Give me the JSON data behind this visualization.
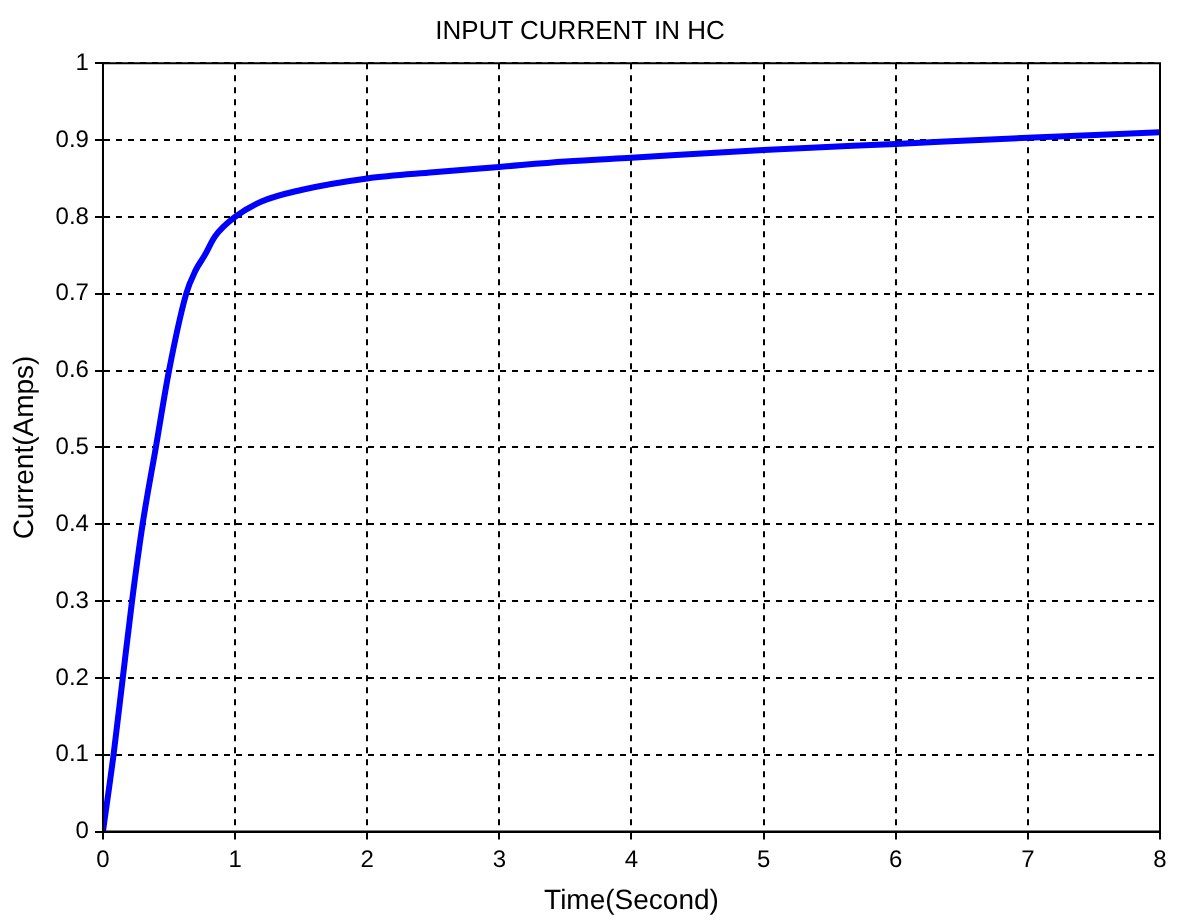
{
  "chart_data": {
    "type": "line",
    "title": "INPUT CURRENT IN HC",
    "xlabel": "Time(Second)",
    "ylabel": "Current(Amps)",
    "x": [
      0,
      0.08,
      0.15,
      0.22,
      0.3,
      0.4,
      0.5,
      0.63,
      0.7,
      0.77,
      0.85,
      1,
      1.2,
      1.5,
      2,
      2.5,
      3,
      3.5,
      4,
      5,
      6,
      7,
      8
    ],
    "series": [
      {
        "color": "#0000ff",
        "values": [
          0,
          0.1,
          0.2,
          0.3,
          0.4,
          0.5,
          0.6,
          0.7,
          0.73,
          0.75,
          0.775,
          0.8,
          0.82,
          0.835,
          0.85,
          0.858,
          0.865,
          0.872,
          0.877,
          0.887,
          0.895,
          0.903,
          0.91
        ]
      }
    ],
    "xlim": [
      0,
      8
    ],
    "ylim": [
      0,
      1
    ],
    "xticks": [
      0,
      1,
      2,
      3,
      4,
      5,
      6,
      7,
      8
    ],
    "yticks": [
      0,
      0.1,
      0.2,
      0.3,
      0.4,
      0.5,
      0.6,
      0.7,
      0.8,
      0.9,
      1
    ],
    "grid": true,
    "legend": false,
    "marker": "none",
    "line_style": "solid"
  }
}
